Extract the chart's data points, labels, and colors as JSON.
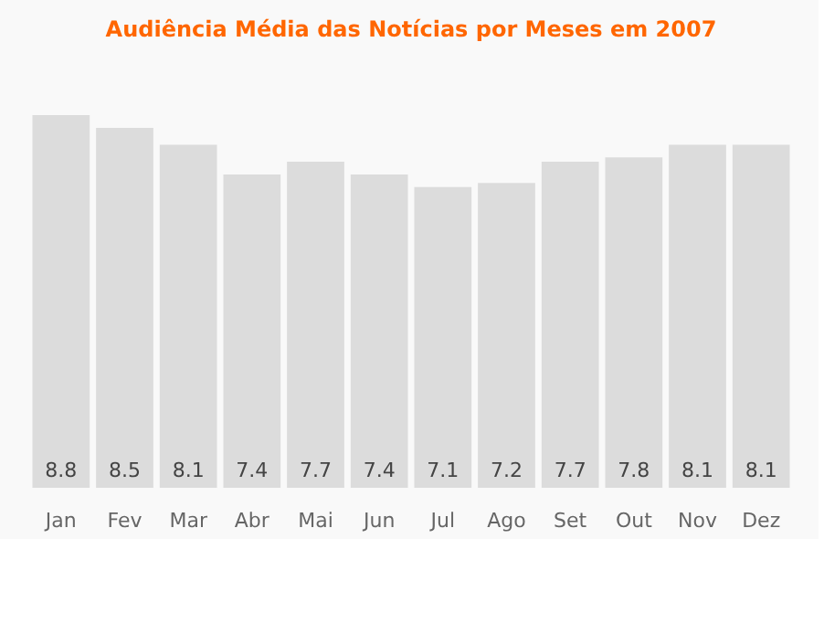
{
  "chart_data": {
    "type": "bar",
    "title": "Audiência Média das Notícias por Meses em 2007",
    "categories": [
      "Jan",
      "Fev",
      "Mar",
      "Abr",
      "Mai",
      "Jun",
      "Jul",
      "Ago",
      "Set",
      "Out",
      "Nov",
      "Dez"
    ],
    "values": [
      8.8,
      8.5,
      8.1,
      7.4,
      7.7,
      7.4,
      7.1,
      7.2,
      7.7,
      7.8,
      8.1,
      8.1
    ],
    "color": "#dcdcdc",
    "data_labels": true
  }
}
